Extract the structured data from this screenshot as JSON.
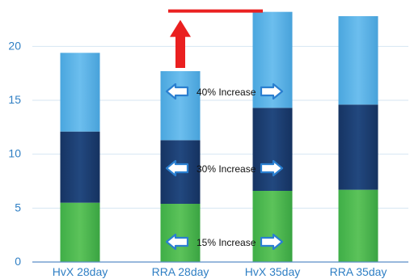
{
  "chart_data": {
    "type": "bar",
    "stacked": true,
    "categories": [
      "HvX 28day",
      "RRA 28day",
      "HvX 35day",
      "RRA 35day"
    ],
    "series": [
      {
        "values": [
          5.5,
          5.4,
          6.6,
          6.7
        ],
        "color": "#4cb849"
      },
      {
        "values": [
          6.6,
          5.9,
          7.7,
          7.9
        ],
        "color": "#1c3d6e"
      },
      {
        "values": [
          7.3,
          6.4,
          8.9,
          8.2
        ],
        "color": "#5ab0e4"
      }
    ],
    "ylim": [
      0,
      24
    ],
    "yticks": [
      0,
      5,
      10,
      15,
      20
    ],
    "ytick_labels": [
      "0",
      "5",
      "10",
      "15",
      "20"
    ],
    "grid": true,
    "annotations": [
      {
        "text": "15% Increase",
        "segment": 0
      },
      {
        "text": "30% Increase",
        "segment": 1
      },
      {
        "text": "40% Increase",
        "segment": 2
      }
    ],
    "colors": {
      "axis_text": "#2f7fc4",
      "grid": "#d6e6f2",
      "axis_line": "#5b8ec6",
      "highlight_arrow": "#ea2020",
      "arrow_fill": "#ffffff",
      "arrow_stroke": "#2a7fd0"
    }
  }
}
